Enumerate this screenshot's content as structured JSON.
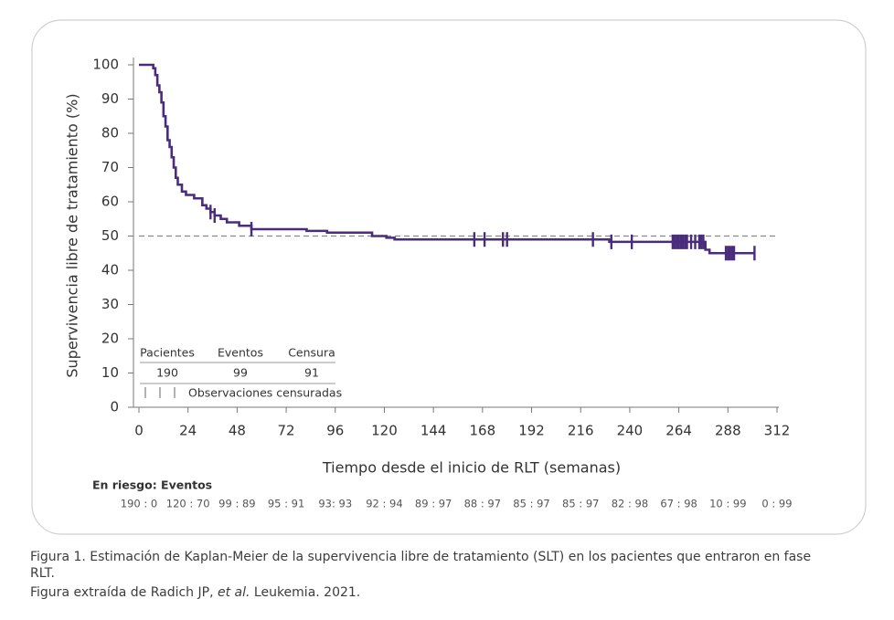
{
  "chart_data": {
    "type": "line",
    "step": "post",
    "x_label": "Tiempo desde el inicio de RLT (semanas)",
    "y_label": "Supervivencia libre de tratamiento (%)",
    "xlim": [
      0,
      312
    ],
    "xticks": [
      0,
      24,
      48,
      72,
      96,
      120,
      144,
      168,
      192,
      216,
      240,
      264,
      288,
      312
    ],
    "ylim": [
      0,
      100
    ],
    "yticks": [
      0,
      10,
      20,
      30,
      40,
      50,
      60,
      70,
      80,
      90,
      100
    ],
    "reference_line": 50,
    "series": [
      {
        "color": "#4a2c7d",
        "x": [
          0,
          7,
          8,
          9,
          10,
          11,
          12,
          13,
          14,
          15,
          16,
          17,
          18,
          19,
          21,
          23,
          27,
          31,
          33,
          35,
          37,
          40,
          43,
          49,
          55,
          82,
          92,
          114,
          121,
          125,
          230,
          277,
          279,
          301
        ],
        "values": [
          100,
          99,
          97,
          94,
          92,
          89,
          85,
          82,
          78,
          76,
          73,
          70,
          67,
          65,
          63,
          62,
          61,
          59,
          58,
          57,
          56,
          55,
          54,
          53,
          52,
          51.5,
          51,
          50,
          49.5,
          49,
          48.3,
          46,
          45,
          45
        ]
      }
    ],
    "censored": {
      "name": "Observaciones censuradas",
      "color": "#4a2c7d",
      "x": [
        35,
        37,
        55,
        164,
        169,
        178,
        180,
        222,
        231,
        241,
        261,
        262,
        263,
        264,
        265,
        266,
        267,
        268,
        270,
        272,
        274,
        275,
        276,
        287,
        288,
        289,
        290,
        291,
        301
      ],
      "values": [
        57,
        56,
        52,
        49,
        49,
        49,
        49,
        49,
        48.3,
        48.3,
        48.3,
        48.3,
        48.3,
        48.3,
        48.3,
        48.3,
        48.3,
        48.3,
        48.3,
        48.3,
        48.3,
        48.3,
        48.3,
        45,
        45,
        45,
        45,
        45,
        45
      ]
    },
    "summary_table": {
      "headers": [
        "Pacientes",
        "Eventos",
        "Censura"
      ],
      "row": [
        "190",
        "99",
        "91"
      ]
    },
    "at_risk": {
      "label": "En riesgo: Eventos",
      "values": [
        "190 : 0",
        "120 : 70",
        "99 : 89",
        "95 : 91",
        "93: 93",
        "92 : 94",
        "89 : 97",
        "88 : 97",
        "85 : 97",
        "85 : 97",
        "82 : 98",
        "67 : 98",
        "10 : 99",
        "0 : 99"
      ]
    }
  },
  "caption": {
    "title": "Figura 1. Estimación de Kaplan-Meier de la supervivencia libre de tratamiento (SLT) en los pacientes que entraron en fase RLT.",
    "source_parts": [
      "Figura extraída de Radich JP, ",
      "et al.",
      " Leukemia. 2021."
    ]
  }
}
